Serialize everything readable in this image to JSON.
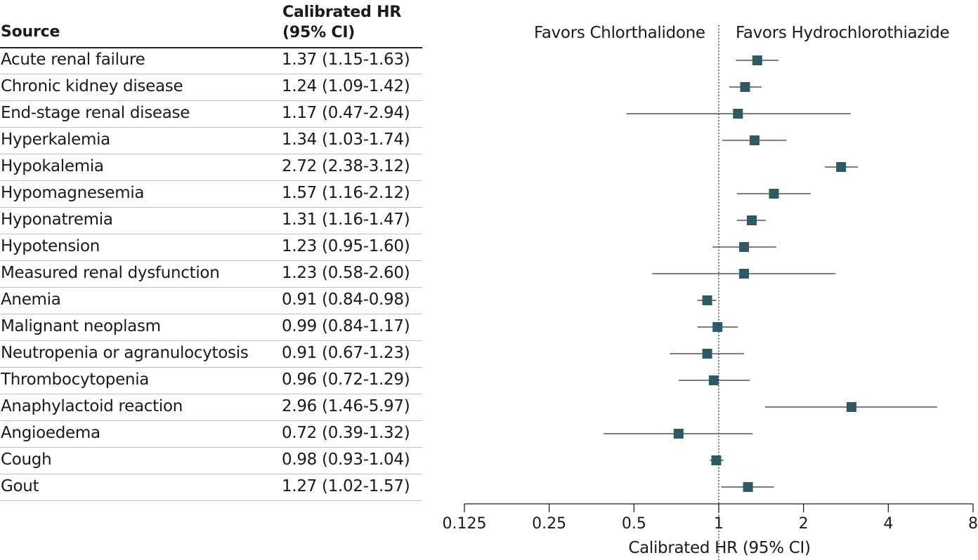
{
  "table": {
    "source_header": "Source",
    "hr_header_line1": "Calibrated HR",
    "hr_header_line2": "(95% CI)"
  },
  "favors": {
    "left": "Favors Chlorthalidone",
    "right": "Favors Hydrochlorothiazide"
  },
  "chart_data": {
    "type": "forest",
    "xlabel": "Calibrated HR (95% CI)",
    "xscale": "log2",
    "xlim": [
      0.125,
      8
    ],
    "xticks": [
      0.125,
      0.25,
      0.5,
      1,
      2,
      4,
      8
    ],
    "xtick_labels": [
      "0.125",
      "0.25",
      "0.5",
      "1",
      "2",
      "4",
      "8"
    ],
    "reference_line": 1,
    "marker_color": "#2e5a66",
    "rows": [
      {
        "source": "Acute renal failure",
        "hr": 1.37,
        "lo": 1.15,
        "hi": 1.63,
        "label": "1.37 (1.15-1.63)"
      },
      {
        "source": "Chronic kidney disease",
        "hr": 1.24,
        "lo": 1.09,
        "hi": 1.42,
        "label": "1.24 (1.09-1.42)"
      },
      {
        "source": "End-stage renal disease",
        "hr": 1.17,
        "lo": 0.47,
        "hi": 2.94,
        "label": "1.17 (0.47-2.94)"
      },
      {
        "source": "Hyperkalemia",
        "hr": 1.34,
        "lo": 1.03,
        "hi": 1.74,
        "label": "1.34 (1.03-1.74)"
      },
      {
        "source": "Hypokalemia",
        "hr": 2.72,
        "lo": 2.38,
        "hi": 3.12,
        "label": "2.72 (2.38-3.12)"
      },
      {
        "source": "Hypomagnesemia",
        "hr": 1.57,
        "lo": 1.16,
        "hi": 2.12,
        "label": "1.57 (1.16-2.12)"
      },
      {
        "source": "Hyponatremia",
        "hr": 1.31,
        "lo": 1.16,
        "hi": 1.47,
        "label": "1.31 (1.16-1.47)"
      },
      {
        "source": "Hypotension",
        "hr": 1.23,
        "lo": 0.95,
        "hi": 1.6,
        "label": "1.23 (0.95-1.60)"
      },
      {
        "source": "Measured renal dysfunction",
        "hr": 1.23,
        "lo": 0.58,
        "hi": 2.6,
        "label": "1.23 (0.58-2.60)"
      },
      {
        "source": "Anemia",
        "hr": 0.91,
        "lo": 0.84,
        "hi": 0.98,
        "label": "0.91 (0.84-0.98)"
      },
      {
        "source": "Malignant neoplasm",
        "hr": 0.99,
        "lo": 0.84,
        "hi": 1.17,
        "label": "0.99 (0.84-1.17)"
      },
      {
        "source": "Neutropenia or agranulocytosis",
        "hr": 0.91,
        "lo": 0.67,
        "hi": 1.23,
        "label": "0.91 (0.67-1.23)"
      },
      {
        "source": "Thrombocytopenia",
        "hr": 0.96,
        "lo": 0.72,
        "hi": 1.29,
        "label": "0.96 (0.72-1.29)"
      },
      {
        "source": "Anaphylactoid reaction",
        "hr": 2.96,
        "lo": 1.46,
        "hi": 5.97,
        "label": "2.96 (1.46-5.97)"
      },
      {
        "source": "Angioedema",
        "hr": 0.72,
        "lo": 0.39,
        "hi": 1.32,
        "label": "0.72 (0.39-1.32)"
      },
      {
        "source": "Cough",
        "hr": 0.98,
        "lo": 0.93,
        "hi": 1.04,
        "label": "0.98 (0.93-1.04)"
      },
      {
        "source": "Gout",
        "hr": 1.27,
        "lo": 1.02,
        "hi": 1.57,
        "label": "1.27 (1.02-1.57)"
      }
    ]
  }
}
